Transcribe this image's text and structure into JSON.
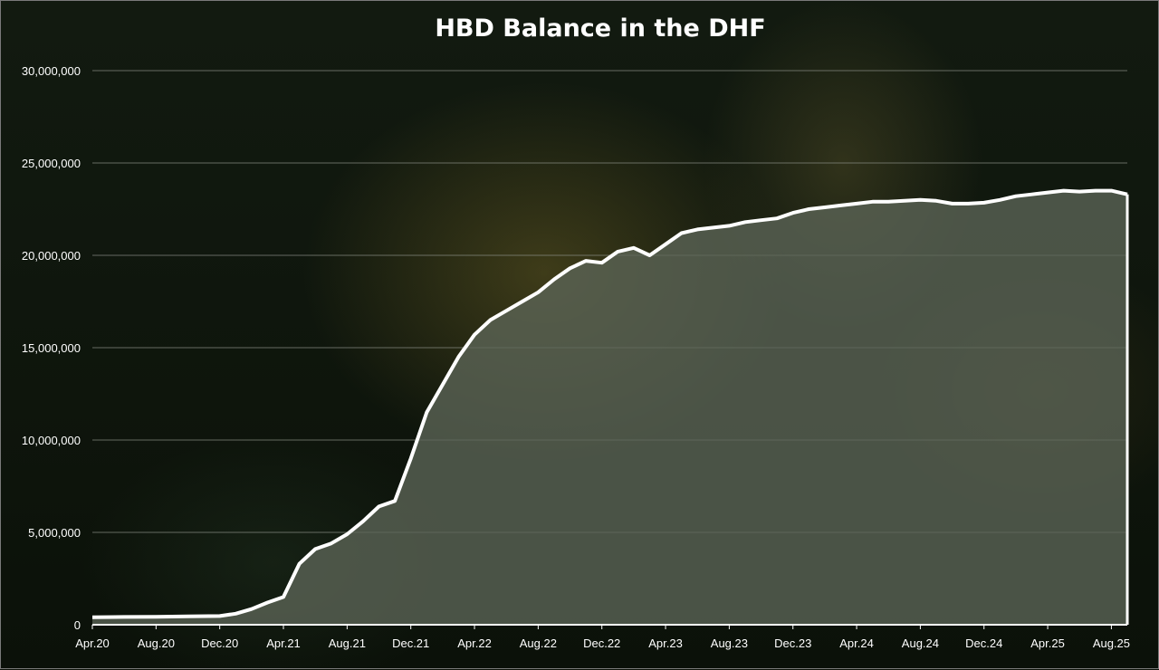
{
  "chart_data": {
    "type": "area",
    "title": "HBD Balance in the DHF",
    "xlabel": "",
    "ylabel": "",
    "ylim": [
      0,
      30000000
    ],
    "y_ticks": [
      "0",
      "5,000,000",
      "10,000,000",
      "15,000,000",
      "20,000,000",
      "25,000,000",
      "30,000,000"
    ],
    "x_ticks": [
      "Apr.20",
      "Aug.20",
      "Dec.20",
      "Apr.21",
      "Aug.21",
      "Dec.21",
      "Apr.22",
      "Aug.22",
      "Dec.22",
      "Apr.23",
      "Aug.23",
      "Dec.23",
      "Apr.24",
      "Aug.24",
      "Dec.24",
      "Apr.25",
      "Aug.25"
    ],
    "grid": true,
    "legend": "none",
    "series": [
      {
        "values": [
          [
            "Apr.20",
            400000
          ],
          [
            "Jun.20",
            420000
          ],
          [
            "Aug.20",
            430000
          ],
          [
            "Oct.20",
            450000
          ],
          [
            "Dec.20",
            470000
          ],
          [
            "Jan.21",
            600000
          ],
          [
            "Feb.21",
            850000
          ],
          [
            "Mar.21",
            1200000
          ],
          [
            "Apr.21",
            1500000
          ],
          [
            "May.21",
            3300000
          ],
          [
            "Jun.21",
            4100000
          ],
          [
            "Jul.21",
            4400000
          ],
          [
            "Aug.21",
            4900000
          ],
          [
            "Sep.21",
            5600000
          ],
          [
            "Oct.21",
            6400000
          ],
          [
            "Nov.21",
            6700000
          ],
          [
            "Dec.21",
            9000000
          ],
          [
            "Jan.22",
            11500000
          ],
          [
            "Feb.22",
            13000000
          ],
          [
            "Mar.22",
            14500000
          ],
          [
            "Apr.22",
            15700000
          ],
          [
            "May.22",
            16500000
          ],
          [
            "Jun.22",
            17000000
          ],
          [
            "Jul.22",
            17500000
          ],
          [
            "Aug.22",
            18000000
          ],
          [
            "Sep.22",
            18700000
          ],
          [
            "Oct.22",
            19300000
          ],
          [
            "Nov.22",
            19700000
          ],
          [
            "Dec.22",
            19600000
          ],
          [
            "Jan.23",
            20200000
          ],
          [
            "Feb.23",
            20400000
          ],
          [
            "Mar.23",
            20000000
          ],
          [
            "Apr.23",
            20600000
          ],
          [
            "May.23",
            21200000
          ],
          [
            "Jun.23",
            21400000
          ],
          [
            "Jul.23",
            21500000
          ],
          [
            "Aug.23",
            21600000
          ],
          [
            "Sep.23",
            21800000
          ],
          [
            "Oct.23",
            21900000
          ],
          [
            "Nov.23",
            22000000
          ],
          [
            "Dec.23",
            22300000
          ],
          [
            "Jan.24",
            22500000
          ],
          [
            "Feb.24",
            22600000
          ],
          [
            "Mar.24",
            22700000
          ],
          [
            "Apr.24",
            22800000
          ],
          [
            "May.24",
            22900000
          ],
          [
            "Jun.24",
            22900000
          ],
          [
            "Jul.24",
            22950000
          ],
          [
            "Aug.24",
            23000000
          ],
          [
            "Sep.24",
            22950000
          ],
          [
            "Oct.24",
            22800000
          ],
          [
            "Nov.24",
            22800000
          ],
          [
            "Dec.24",
            22850000
          ],
          [
            "Jan.25",
            23000000
          ],
          [
            "Feb.25",
            23200000
          ],
          [
            "Mar.25",
            23300000
          ],
          [
            "Apr.25",
            23400000
          ],
          [
            "May.25",
            23500000
          ],
          [
            "Jun.25",
            23450000
          ],
          [
            "Jul.25",
            23500000
          ],
          [
            "Aug.25",
            23500000
          ],
          [
            "Sep.25",
            23300000
          ]
        ]
      }
    ],
    "colors": {
      "line": "#ffffff",
      "fill": "#5c6557",
      "grid": "#8a8f86",
      "text": "#ffffff"
    }
  }
}
